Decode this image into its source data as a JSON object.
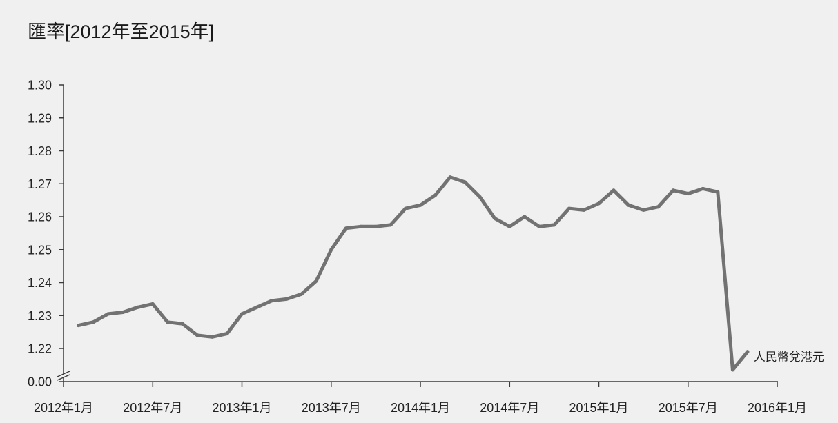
{
  "chart_data": {
    "type": "line",
    "title": "匯率[2012年至2015年]",
    "x_ticks": [
      "2012年1月",
      "2012年7月",
      "2013年1月",
      "2013年7月",
      "2014年1月",
      "2014年7月",
      "2015年1月",
      "2015年7月",
      "2016年1月"
    ],
    "y_ticks": [
      "0.00",
      "1.22",
      "1.23",
      "1.24",
      "1.25",
      "1.26",
      "1.27",
      "1.28",
      "1.29",
      "1.30"
    ],
    "xlim": [
      "2012年1月",
      "2016年1月"
    ],
    "ylim": [
      1.22,
      1.3
    ],
    "y_axis_break": true,
    "grid": false,
    "legend": "right",
    "x": [
      "2012年2月",
      "2012年3月",
      "2012年4月",
      "2012年5月",
      "2012年6月",
      "2012年7月",
      "2012年8月",
      "2012年9月",
      "2012年10月",
      "2012年11月",
      "2012年12月",
      "2013年1月",
      "2013年2月",
      "2013年3月",
      "2013年4月",
      "2013年5月",
      "2013年6月",
      "2013年7月",
      "2013年8月",
      "2013年9月",
      "2013年10月",
      "2013年11月",
      "2013年12月",
      "2014年1月",
      "2014年2月",
      "2014年3月",
      "2014年4月",
      "2014年5月",
      "2014年6月",
      "2014年7月",
      "2014年8月",
      "2014年9月",
      "2014年10月",
      "2014年11月",
      "2014年12月",
      "2015年1月",
      "2015年2月",
      "2015年3月",
      "2015年4月",
      "2015年5月",
      "2015年6月",
      "2015年7月",
      "2015年8月",
      "2015年9月",
      "2015年10月",
      "2015年11月"
    ],
    "series": [
      {
        "name": "人民幣兌港元",
        "color": "#727272",
        "values": [
          1.227,
          1.228,
          1.2305,
          1.231,
          1.2325,
          1.2335,
          1.228,
          1.2275,
          1.224,
          1.2235,
          1.2245,
          1.2305,
          1.2325,
          1.2345,
          1.235,
          1.2365,
          1.2405,
          1.25,
          1.2565,
          1.257,
          1.257,
          1.2575,
          1.2625,
          1.2635,
          1.2665,
          1.272,
          1.2705,
          1.266,
          1.2595,
          1.257,
          1.26,
          1.257,
          1.2575,
          1.2625,
          1.262,
          1.264,
          1.268,
          1.2635,
          1.262,
          1.263,
          1.268,
          1.267,
          1.2685,
          1.2675,
          1.2135,
          1.219
        ]
      }
    ]
  }
}
